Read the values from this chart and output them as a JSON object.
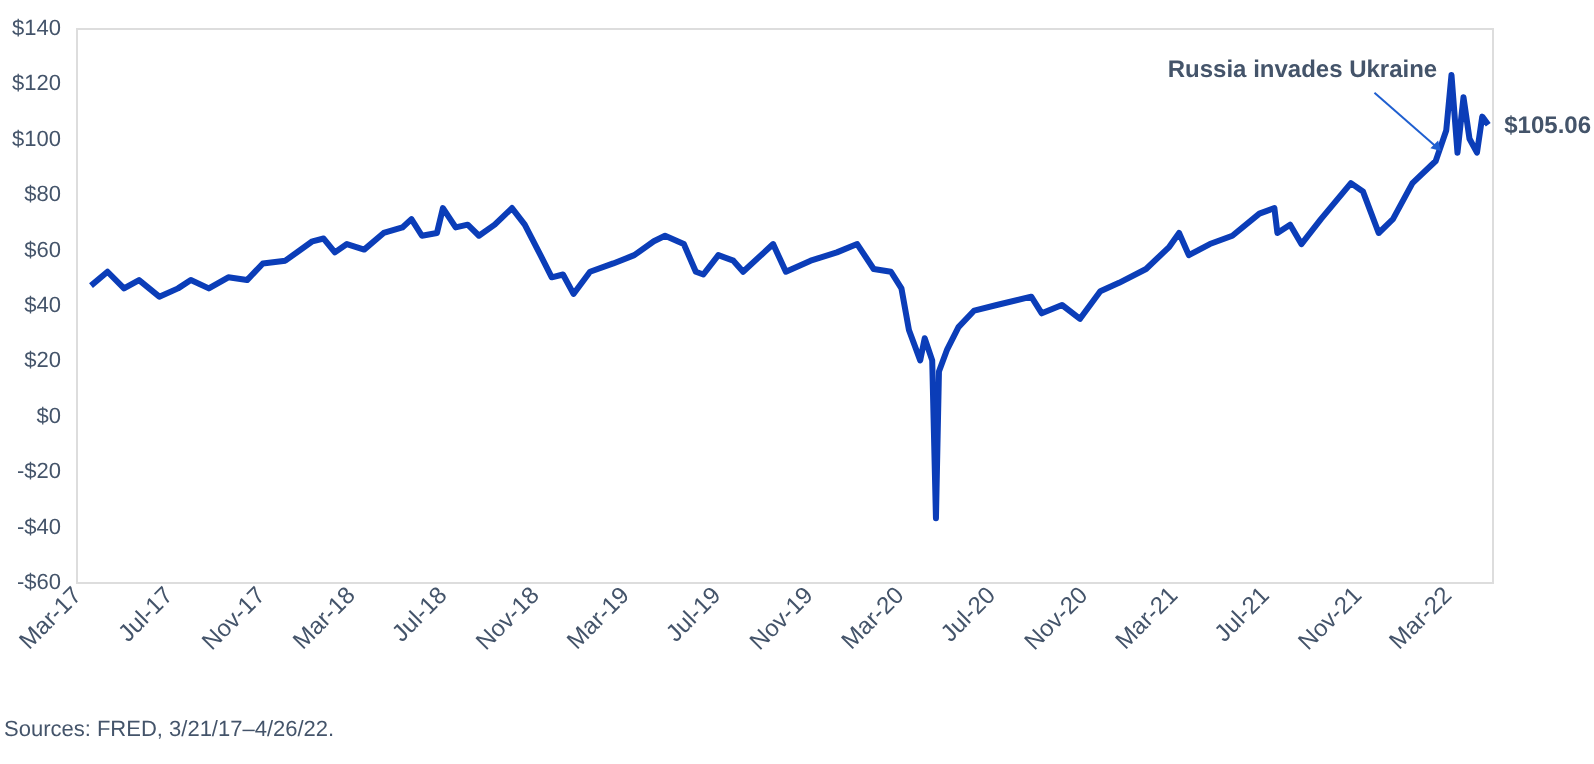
{
  "chart_data": {
    "type": "line",
    "x": [
      "2017-03-21",
      "2017-04-12",
      "2017-05-04",
      "2017-05-24",
      "2017-06-20",
      "2017-07-15",
      "2017-08-01",
      "2017-08-25",
      "2017-09-20",
      "2017-10-15",
      "2017-11-05",
      "2017-12-05",
      "2018-01-10",
      "2018-01-25",
      "2018-02-09",
      "2018-02-25",
      "2018-03-20",
      "2018-04-15",
      "2018-05-10",
      "2018-05-22",
      "2018-06-05",
      "2018-06-25",
      "2018-07-03",
      "2018-07-20",
      "2018-08-05",
      "2018-08-20",
      "2018-09-10",
      "2018-10-03",
      "2018-10-20",
      "2018-11-10",
      "2018-11-25",
      "2018-12-10",
      "2018-12-24",
      "2019-01-15",
      "2019-02-15",
      "2019-03-15",
      "2019-04-10",
      "2019-04-25",
      "2019-05-20",
      "2019-06-05",
      "2019-06-15",
      "2019-07-05",
      "2019-07-25",
      "2019-08-07",
      "2019-09-16",
      "2019-10-03",
      "2019-11-05",
      "2019-12-10",
      "2020-01-06",
      "2020-01-28",
      "2020-02-20",
      "2020-03-05",
      "2020-03-15",
      "2020-03-30",
      "2020-04-05",
      "2020-04-15",
      "2020-04-20",
      "2020-04-24",
      "2020-05-05",
      "2020-05-20",
      "2020-06-10",
      "2020-07-10",
      "2020-08-25",
      "2020-09-08",
      "2020-10-05",
      "2020-10-29",
      "2020-11-25",
      "2020-12-20",
      "2021-01-25",
      "2021-02-25",
      "2021-03-10",
      "2021-03-23",
      "2021-04-20",
      "2021-05-20",
      "2021-06-25",
      "2021-07-15",
      "2021-07-19",
      "2021-08-05",
      "2021-08-20",
      "2021-09-15",
      "2021-10-25",
      "2021-11-10",
      "2021-12-01",
      "2021-12-20",
      "2022-01-15",
      "2022-02-15",
      "2022-03-01",
      "2022-03-08",
      "2022-03-16",
      "2022-03-24",
      "2022-04-01",
      "2022-04-11",
      "2022-04-18",
      "2022-04-26"
    ],
    "series": [
      {
        "color": "#0b3db8",
        "values": [
          47,
          52,
          46,
          49,
          43,
          46,
          49,
          46,
          50,
          49,
          55,
          56,
          63,
          64,
          59,
          62,
          60,
          66,
          68,
          71,
          65,
          66,
          75,
          68,
          69,
          65,
          69,
          75,
          69,
          58,
          50,
          51,
          44,
          52,
          55,
          58,
          63,
          65,
          62,
          52,
          51,
          58,
          56,
          52,
          62,
          52,
          56,
          59,
          62,
          53,
          52,
          46,
          31,
          20,
          28,
          20,
          -37,
          16,
          24,
          32,
          38,
          40,
          43,
          37,
          40,
          35,
          45,
          48,
          53,
          61,
          66,
          58,
          62,
          65,
          73,
          75,
          66,
          69,
          62,
          71,
          84,
          81,
          66,
          71,
          84,
          92,
          103,
          123,
          95,
          115,
          100,
          95,
          108,
          105.06
        ]
      }
    ],
    "xlim": [
      "2017-03-01",
      "2022-05-01"
    ],
    "xticks": [
      {
        "value": "2017-03-01",
        "label": "Mar-17"
      },
      {
        "value": "2017-07-01",
        "label": "Jul-17"
      },
      {
        "value": "2017-11-01",
        "label": "Nov-17"
      },
      {
        "value": "2018-03-01",
        "label": "Mar-18"
      },
      {
        "value": "2018-07-01",
        "label": "Jul-18"
      },
      {
        "value": "2018-11-01",
        "label": "Nov-18"
      },
      {
        "value": "2019-03-01",
        "label": "Mar-19"
      },
      {
        "value": "2019-07-01",
        "label": "Jul-19"
      },
      {
        "value": "2019-11-01",
        "label": "Nov-19"
      },
      {
        "value": "2020-03-01",
        "label": "Mar-20"
      },
      {
        "value": "2020-07-01",
        "label": "Jul-20"
      },
      {
        "value": "2020-11-01",
        "label": "Nov-20"
      },
      {
        "value": "2021-03-01",
        "label": "Mar-21"
      },
      {
        "value": "2021-07-01",
        "label": "Jul-21"
      },
      {
        "value": "2021-11-01",
        "label": "Nov-21"
      },
      {
        "value": "2022-03-01",
        "label": "Mar-22"
      }
    ],
    "ylim": [
      -60,
      140
    ],
    "yticks": [
      {
        "value": -60,
        "label": "-$60"
      },
      {
        "value": -40,
        "label": "-$40"
      },
      {
        "value": -20,
        "label": "-$20"
      },
      {
        "value": 0,
        "label": "$0"
      },
      {
        "value": 20,
        "label": "$20"
      },
      {
        "value": 40,
        "label": "$40"
      },
      {
        "value": 60,
        "label": "$60"
      },
      {
        "value": 80,
        "label": "$80"
      },
      {
        "value": 100,
        "label": "$100"
      },
      {
        "value": 120,
        "label": "$120"
      },
      {
        "value": 140,
        "label": "$140"
      }
    ],
    "grid": false,
    "marker": "none",
    "line_style": "solid",
    "annotations": [
      {
        "text": "Russia invades Ukraine",
        "x": "2022-02-24",
        "y": 95
      },
      {
        "text": "$105.06",
        "x": "2022-04-26",
        "y": 105.06
      },
      "Sources: FRED, 3/21/17–4/26/22."
    ]
  }
}
